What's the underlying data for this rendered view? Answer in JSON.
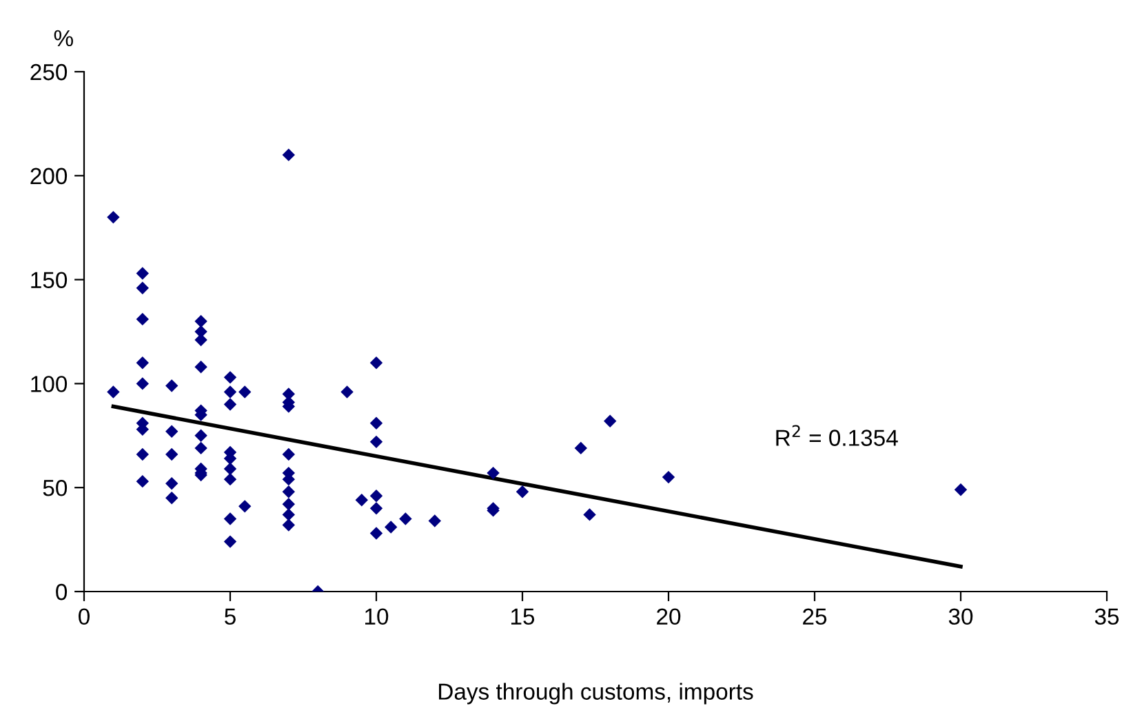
{
  "chart_data": {
    "type": "scatter",
    "ylabel": "%",
    "xlabel": "Days through customs, imports",
    "xlim": [
      0,
      35
    ],
    "ylim": [
      0,
      250
    ],
    "xticks": [
      0,
      5,
      10,
      15,
      20,
      25,
      30,
      35
    ],
    "yticks": [
      0,
      50,
      100,
      150,
      200,
      250
    ],
    "grid": false,
    "legend": false,
    "marker": "diamond",
    "annotations": [
      "R$^{2}$ = 0.1354"
    ],
    "series": [
      {
        "color": "#000080",
        "x": [
          1,
          1,
          2,
          2,
          2,
          2,
          2,
          2,
          2,
          2,
          2,
          3,
          3,
          3,
          3,
          3,
          4,
          4,
          4,
          4,
          4,
          4,
          4,
          4,
          4,
          4,
          4,
          5,
          5,
          5,
          5,
          5,
          5,
          5,
          5,
          5,
          5.5,
          5.5,
          7,
          7,
          7,
          7,
          7,
          7,
          7,
          7,
          7,
          7,
          7,
          8,
          9,
          9.5,
          10,
          10,
          10,
          10,
          10,
          10,
          10.5,
          11,
          12,
          14,
          14,
          14,
          15,
          17,
          17.3,
          18,
          20,
          30
        ],
        "values": [
          180,
          96,
          153,
          146,
          131,
          110,
          100,
          81,
          78,
          66,
          53,
          99,
          77,
          66,
          52,
          45,
          130,
          125,
          121,
          108,
          87,
          85,
          75,
          69,
          59,
          57,
          56,
          103,
          96,
          90,
          67,
          64,
          59,
          54,
          35,
          24,
          96,
          41,
          210,
          95,
          91,
          89,
          66,
          57,
          54,
          48,
          42,
          37,
          32,
          0,
          96,
          44,
          110,
          81,
          72,
          46,
          40,
          28,
          31,
          35,
          34,
          57,
          40,
          39,
          48,
          69,
          37,
          82,
          55,
          49
        ]
      },
      {
        "type": "line",
        "color": "#000000",
        "x": [
          1,
          30
        ],
        "values": [
          89,
          12
        ],
        "marker": "none"
      }
    ]
  }
}
